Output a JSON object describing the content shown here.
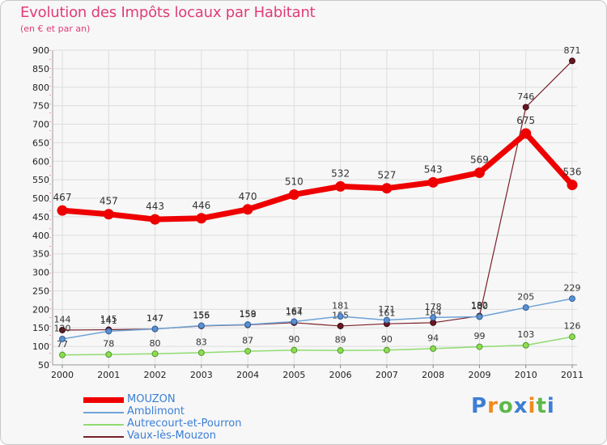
{
  "header": {
    "title": "Evolution des Impôts locaux par Habitant",
    "subtitle": "(en € et par an)"
  },
  "logo": {
    "text": "Proxiti",
    "letters": [
      {
        "ch": "P",
        "color": "#3c7fd4"
      },
      {
        "ch": "r",
        "color": "#f08a1c"
      },
      {
        "ch": "o",
        "color": "#5fb84a"
      },
      {
        "ch": "x",
        "color": "#3c7fd4"
      },
      {
        "ch": "i",
        "color": "#f08a1c"
      },
      {
        "ch": "t",
        "color": "#5fb84a"
      },
      {
        "ch": "i",
        "color": "#3c7fd4"
      }
    ]
  },
  "chart_data": {
    "type": "line",
    "title": "Evolution des Impôts locaux par Habitant",
    "subtitle": "(en € et par an)",
    "xlabel": "",
    "ylabel": "",
    "x": [
      "2000",
      "2001",
      "2002",
      "2003",
      "2004",
      "2005",
      "2006",
      "2007",
      "2008",
      "2009",
      "2010",
      "2011"
    ],
    "ylim": [
      50,
      900
    ],
    "yticks": [
      50,
      100,
      150,
      200,
      250,
      300,
      350,
      400,
      450,
      500,
      550,
      600,
      650,
      700,
      750,
      800,
      850,
      900
    ],
    "grid": true,
    "legend_position": "bottom-left",
    "series": [
      {
        "name": "Vaux-lès-Mouzon",
        "color": "#7a1f2a",
        "values": [
          144,
          145,
          147,
          155,
          158,
          164,
          155,
          161,
          164,
          182,
          746,
          871
        ]
      },
      {
        "name": "Autrecourt-et-Pourron",
        "color": "#90dc70",
        "values": [
          77,
          78,
          80,
          83,
          87,
          90,
          89,
          90,
          94,
          99,
          103,
          126
        ]
      },
      {
        "name": "Amblimont",
        "color": "#6fa3d6",
        "values": [
          120,
          141,
          147,
          156,
          159,
          167,
          181,
          171,
          178,
          180,
          205,
          229
        ]
      },
      {
        "name": "MOUZON",
        "color": "#ee0000",
        "values": [
          467,
          457,
          443,
          446,
          470,
          510,
          532,
          527,
          543,
          569,
          675,
          536
        ]
      }
    ],
    "legend": [
      "MOUZON",
      "Amblimont",
      "Autrecourt-et-Pourron",
      "Vaux-lès-Mouzon"
    ]
  }
}
